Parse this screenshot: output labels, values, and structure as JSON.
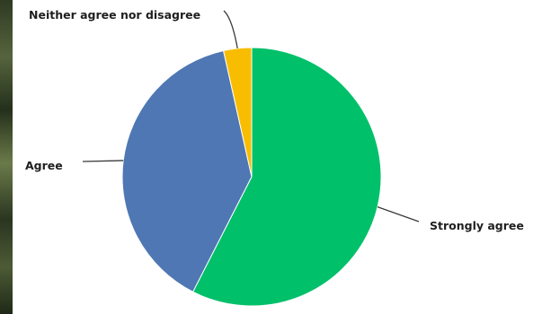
{
  "chart_data": {
    "type": "pie",
    "title": "",
    "categories": [
      "Strongly agree",
      "Agree",
      "Neither agree nor disagree"
    ],
    "values": [
      57.5,
      39,
      3.5
    ],
    "unit": "%",
    "colors": [
      "#00c06a",
      "#4e77b3",
      "#f8bd00"
    ],
    "start_angle_deg": 0,
    "direction": "clockwise",
    "legend": "none",
    "labels": "outside-with-leader-lines"
  }
}
